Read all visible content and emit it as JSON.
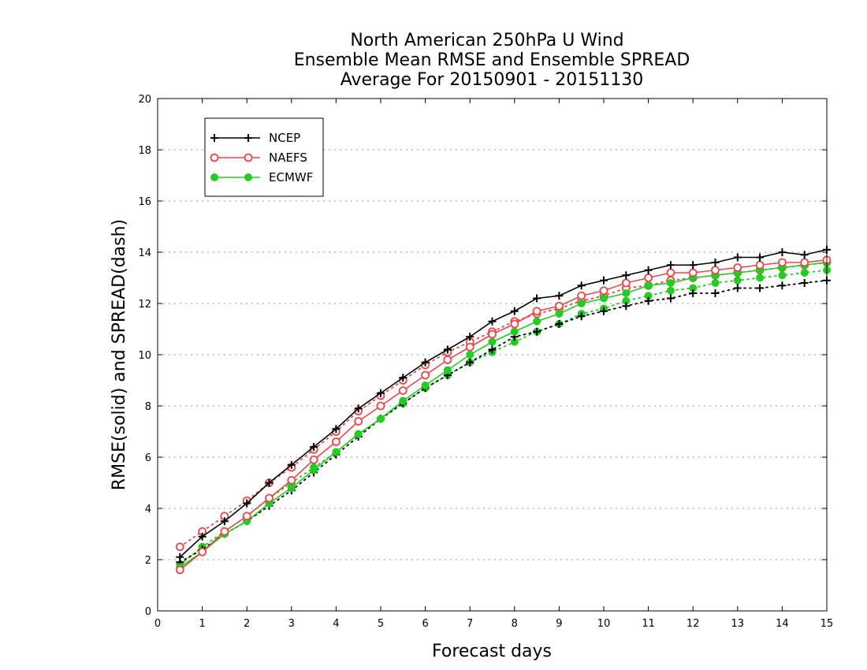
{
  "chart_data": {
    "type": "line",
    "title": [
      "North American 250hPa U Wind",
      "Ensemble Mean RMSE and Ensemble SPREAD",
      "Average For 20150901 - 20151130"
    ],
    "xlabel": "Forecast days",
    "ylabel": "RMSE(solid) and SPREAD(dash)",
    "xlim": [
      0,
      15
    ],
    "ylim": [
      0,
      20
    ],
    "xticks": [
      0,
      1,
      2,
      3,
      4,
      5,
      6,
      7,
      8,
      9,
      10,
      11,
      12,
      13,
      14,
      15
    ],
    "yticks": [
      0,
      2,
      4,
      6,
      8,
      10,
      12,
      14,
      16,
      18,
      20
    ],
    "ygrid": true,
    "legend_position": "top-left",
    "x": [
      0.5,
      1,
      1.5,
      2,
      2.5,
      3,
      3.5,
      4,
      4.5,
      5,
      5.5,
      6,
      6.5,
      7,
      7.5,
      8,
      8.5,
      9,
      9.5,
      10,
      10.5,
      11,
      11.5,
      12,
      12.5,
      13,
      13.5,
      14,
      14.5,
      15
    ],
    "series": [
      {
        "name": "NCEP",
        "color": "#000000",
        "marker": "plus",
        "rmse": [
          2.1,
          2.9,
          3.5,
          4.2,
          5.0,
          5.7,
          6.4,
          7.1,
          7.9,
          8.5,
          9.1,
          9.7,
          10.2,
          10.7,
          11.3,
          11.7,
          12.2,
          12.3,
          12.7,
          12.9,
          13.1,
          13.3,
          13.5,
          13.5,
          13.6,
          13.8,
          13.8,
          14.0,
          13.9,
          14.1
        ],
        "spread": [
          1.9,
          2.4,
          3.0,
          3.5,
          4.1,
          4.7,
          5.4,
          6.1,
          6.8,
          7.5,
          8.1,
          8.7,
          9.2,
          9.7,
          10.2,
          10.7,
          10.9,
          11.2,
          11.5,
          11.7,
          11.9,
          12.1,
          12.2,
          12.4,
          12.4,
          12.6,
          12.6,
          12.7,
          12.8,
          12.9
        ]
      },
      {
        "name": "NAEFS",
        "color": "#e84848",
        "marker": "open-circle",
        "rmse": [
          1.6,
          2.3,
          3.1,
          3.7,
          4.4,
          5.1,
          5.9,
          6.6,
          7.4,
          8.0,
          8.6,
          9.2,
          9.8,
          10.3,
          10.8,
          11.2,
          11.7,
          11.9,
          12.3,
          12.5,
          12.8,
          13.0,
          13.2,
          13.2,
          13.3,
          13.4,
          13.5,
          13.6,
          13.6,
          13.7
        ],
        "spread": [
          2.5,
          3.1,
          3.7,
          4.3,
          5.0,
          5.6,
          6.3,
          7.0,
          7.8,
          8.4,
          9.0,
          9.6,
          10.1,
          10.5,
          10.9,
          11.3,
          11.6,
          11.8,
          12.1,
          12.3,
          12.6,
          12.7,
          12.9,
          13.0,
          13.1,
          13.2,
          13.3,
          13.4,
          13.5,
          13.6
        ]
      },
      {
        "name": "ECMWF",
        "color": "#22cc22",
        "marker": "filled-circle",
        "rmse": [
          1.7,
          2.3,
          3.0,
          3.5,
          4.2,
          4.8,
          5.5,
          6.2,
          6.9,
          7.5,
          8.2,
          8.8,
          9.4,
          10.0,
          10.5,
          10.9,
          11.3,
          11.6,
          12.0,
          12.2,
          12.4,
          12.7,
          12.8,
          13.0,
          13.1,
          13.2,
          13.3,
          13.4,
          13.5,
          13.6
        ],
        "spread": [
          1.8,
          2.5,
          3.1,
          3.7,
          4.4,
          5.0,
          5.6,
          6.2,
          6.9,
          7.5,
          8.1,
          8.7,
          9.2,
          9.7,
          10.1,
          10.5,
          10.9,
          11.2,
          11.6,
          11.8,
          12.1,
          12.3,
          12.5,
          12.6,
          12.8,
          12.9,
          13.0,
          13.1,
          13.2,
          13.3
        ]
      }
    ]
  }
}
